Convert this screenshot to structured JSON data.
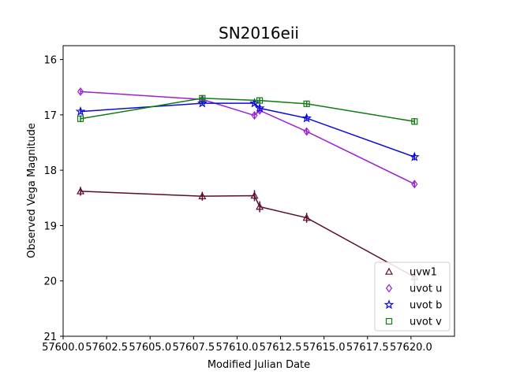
{
  "chart_data": {
    "type": "line",
    "title": "SN2016eii",
    "xlabel": "Modified Julian Date",
    "ylabel": "Observed Vega Magnitude",
    "xlim": [
      57600.0,
      57622.5
    ],
    "ylim": [
      21,
      15.75
    ],
    "y_inverted": true,
    "xticks": [
      57600.0,
      57602.5,
      57605.0,
      57607.5,
      57610.0,
      57612.5,
      57615.0,
      57617.5,
      57620.0
    ],
    "xtick_labels": [
      "57600.0",
      "57602.5",
      "57605.0",
      "57607.5",
      "57610.0",
      "57612.5",
      "57615.0",
      "57617.5",
      "57620.0"
    ],
    "yticks": [
      16,
      17,
      18,
      19,
      20,
      21
    ],
    "ytick_labels": [
      "16",
      "17",
      "18",
      "19",
      "20",
      "21"
    ],
    "grid": false,
    "legend_position": "lower-right",
    "series": [
      {
        "name": "uvw1",
        "color": "#5c0a2e",
        "marker": "triangle",
        "points": [
          {
            "x": 57601.0,
            "y": 18.38,
            "err": 0.08
          },
          {
            "x": 57608.0,
            "y": 18.47,
            "err": 0.08
          },
          {
            "x": 57611.0,
            "y": 18.46,
            "err": 0.1
          },
          {
            "x": 57611.3,
            "y": 18.66,
            "err": 0.1
          },
          {
            "x": 57614.0,
            "y": 18.86,
            "err": 0.09
          },
          {
            "x": 57620.2,
            "y": 19.93,
            "err": 0.15
          }
        ]
      },
      {
        "name": "uvot u",
        "color": "#9b1fd6",
        "marker": "diamond",
        "points": [
          {
            "x": 57601.0,
            "y": 16.58,
            "err": 0.04
          },
          {
            "x": 57608.0,
            "y": 16.72,
            "err": 0.04
          },
          {
            "x": 57611.0,
            "y": 17.01,
            "err": 0.05
          },
          {
            "x": 57611.3,
            "y": 16.92,
            "err": 0.05
          },
          {
            "x": 57614.0,
            "y": 17.3,
            "err": 0.05
          },
          {
            "x": 57620.2,
            "y": 18.25,
            "err": 0.06
          }
        ]
      },
      {
        "name": "uvot b",
        "color": "#0a0ae0",
        "marker": "star",
        "points": [
          {
            "x": 57601.0,
            "y": 16.94,
            "err": 0.04
          },
          {
            "x": 57608.0,
            "y": 16.79,
            "err": 0.04
          },
          {
            "x": 57611.0,
            "y": 16.79,
            "err": 0.04
          },
          {
            "x": 57611.3,
            "y": 16.88,
            "err": 0.04
          },
          {
            "x": 57614.0,
            "y": 17.06,
            "err": 0.05
          },
          {
            "x": 57620.2,
            "y": 17.76,
            "err": 0.06
          }
        ]
      },
      {
        "name": "uvot v",
        "color": "#117a11",
        "marker": "square",
        "points": [
          {
            "x": 57601.0,
            "y": 17.07,
            "err": 0.06
          },
          {
            "x": 57608.0,
            "y": 16.7,
            "err": 0.05
          },
          {
            "x": 57611.3,
            "y": 16.74,
            "err": 0.05
          },
          {
            "x": 57614.0,
            "y": 16.8,
            "err": 0.05
          },
          {
            "x": 57620.2,
            "y": 17.12,
            "err": 0.06
          }
        ]
      }
    ]
  }
}
